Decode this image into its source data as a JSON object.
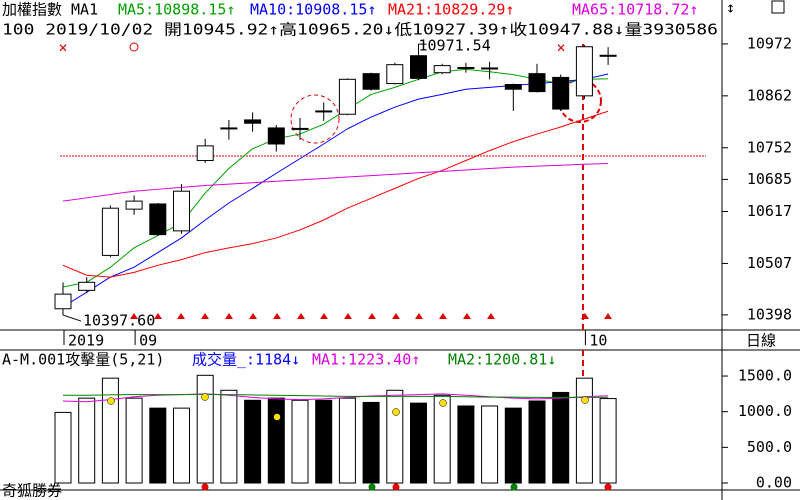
{
  "chart_data": [
    {
      "type": "candlestick",
      "header": {
        "name": "加權指數 MA1",
        "info": "100 2019/10/02 開10945.92↑高10965.20↓低10927.39↑收10947.88↓量3930586"
      },
      "categories": [
        "2019",
        null,
        null,
        "09",
        null,
        null,
        null,
        null,
        null,
        null,
        null,
        null,
        null,
        null,
        null,
        null,
        null,
        null,
        null,
        null,
        null,
        null,
        "10",
        null
      ],
      "period": "日線",
      "open": [
        10411,
        10450,
        10524,
        10622,
        10633,
        10576,
        10725,
        10792,
        10811,
        10794,
        10792,
        10830,
        10823,
        10909,
        10888,
        10947,
        10911,
        10922,
        10920,
        10886,
        10909,
        10901,
        10862,
        10945.92
      ],
      "high": [
        10467,
        10478,
        10630,
        10651,
        10635,
        10675,
        10771,
        10811,
        10827,
        10800,
        10815,
        10848,
        10899,
        10911,
        10932,
        10971.54,
        10930,
        10932,
        10934,
        10888,
        10930,
        10907,
        10970,
        10965.2
      ],
      "low": [
        10397.6,
        10444,
        10520,
        10610,
        10565,
        10570,
        10720,
        10769,
        10786,
        10744,
        10769,
        10809,
        10821,
        10873,
        10886,
        10895,
        10908,
        10911,
        10897,
        10830,
        10869,
        10830,
        10855,
        10927.39
      ],
      "close": [
        10442,
        10467,
        10624,
        10639,
        10568,
        10660,
        10756,
        10794,
        10804,
        10760,
        10793,
        10829,
        10897,
        10876,
        10928,
        10899,
        10926,
        10921,
        10921,
        10876,
        10871,
        10834,
        10966,
        10947.88
      ],
      "series": [
        {
          "name": "MA5:10898.15↑",
          "color": "#00a000",
          "values": [
            10457,
            10467,
            10499,
            10540,
            10566,
            10593,
            10656,
            10708,
            10750,
            10771,
            10781,
            10802,
            10834,
            10865,
            10880,
            10897,
            10913,
            10918,
            10913,
            10907,
            10897,
            10888,
            10897,
            10898.15
          ]
        },
        {
          "name": "MA10:10908.15↑",
          "color": "#0000ff",
          "values": [
            10415,
            10446,
            10478,
            10499,
            10530,
            10561,
            10599,
            10635,
            10666,
            10698,
            10729,
            10760,
            10792,
            10817,
            10838,
            10855,
            10865,
            10876,
            10880,
            10884,
            10888,
            10892,
            10897,
            10908.15
          ]
        },
        {
          "name": "MA21:10829.29↑",
          "color": "#ff0000",
          "values": [
            10503,
            10482,
            10478,
            10488,
            10503,
            10515,
            10530,
            10540,
            10549,
            10561,
            10578,
            10599,
            10624,
            10645,
            10666,
            10687,
            10704,
            10725,
            10746,
            10765,
            10781,
            10796,
            10813,
            10829.29
          ]
        },
        {
          "name": "MA65:10718.72↑",
          "color": "#e000e0",
          "values": [
            10639,
            10646,
            10653,
            10660,
            10664,
            10668,
            10672,
            10675,
            10678,
            10681,
            10684,
            10687,
            10690,
            10693,
            10696,
            10699,
            10702,
            10705,
            10708,
            10711,
            10713,
            10715,
            10717,
            10718.72
          ]
        }
      ],
      "annotations": [
        {
          "index": 15,
          "text": "10971.54"
        },
        {
          "index": 0,
          "text": "10397.60"
        }
      ],
      "ylim": [
        10366,
        11065
      ],
      "yticks": [
        10398,
        10507,
        10617,
        10685,
        10752,
        10862,
        10972
      ]
    },
    {
      "type": "bar",
      "header": {
        "name": "A-M.001攻擊量(5,21)"
      },
      "footer": "奇狐勝券",
      "series": [
        {
          "name": "成交量_:1184↓",
          "color": "#0000ff",
          "values": [
            990,
            1190,
            1470,
            1190,
            1050,
            1050,
            1510,
            1300,
            1160,
            1190,
            1160,
            1160,
            1190,
            1130,
            1300,
            1120,
            1230,
            1080,
            1080,
            1050,
            1150,
            1270,
            1470,
            1184
          ]
        },
        {
          "name": "MA1:1223.40↑",
          "color": "#e000e0",
          "values": [
            1150,
            1140,
            1170,
            1210,
            1230,
            1240,
            1250,
            1230,
            1200,
            1180,
            1170,
            1180,
            1200,
            1220,
            1230,
            1240,
            1250,
            1230,
            1210,
            1190,
            1180,
            1190,
            1210,
            1223.4
          ]
        },
        {
          "name": "MA2:1200.81↓",
          "color": "#008000",
          "values": [
            1230,
            1230,
            1235,
            1240,
            1240,
            1240,
            1245,
            1240,
            1235,
            1230,
            1225,
            1220,
            1215,
            1215,
            1215,
            1215,
            1215,
            1210,
            1205,
            1205,
            1200,
            1200,
            1200,
            1200.81
          ]
        }
      ],
      "ylim": [
        -98,
        1837
      ],
      "yticks": [
        {
          "value": 0,
          "label": "0.00"
        },
        {
          "value": 500,
          "label": "500.0"
        },
        {
          "value": 1000,
          "label": "1000.0"
        },
        {
          "value": 1500,
          "label": "1500.0"
        }
      ]
    }
  ]
}
